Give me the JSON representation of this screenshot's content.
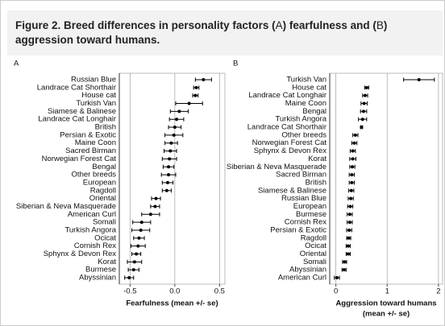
{
  "caption": {
    "label": "Figure 2.",
    "parts": [
      "Breed differences in personality factors (",
      "A",
      ") fearfulness and (",
      "B",
      ") aggression toward humans."
    ]
  },
  "chart_data": [
    {
      "type": "dot",
      "panel": "A",
      "xlabel": [
        "Fearfulness (mean +/- se)"
      ],
      "categories": [
        "Russian Blue",
        "Landrace Cat Shorthair",
        "House cat",
        "Turkish Van",
        "Siamese & Balinese",
        "Landrace Cat Longhair",
        "British",
        "Persian & Exotic",
        "Maine Coon",
        "Sacred Birman",
        "Norwegian Forest Cat",
        "Bengal",
        "Other breeds",
        "European",
        "Ragdoll",
        "Oriental",
        "Siberian & Neva Masquerade",
        "American Curl",
        "Somali",
        "Turkish Angora",
        "Ocicat",
        "Cornish Rex",
        "Sphynx & Devon Rex",
        "Korat",
        "Burmese",
        "Abyssinian"
      ],
      "values": [
        0.32,
        0.24,
        0.23,
        0.16,
        0.05,
        0.02,
        0.0,
        -0.01,
        -0.04,
        -0.05,
        -0.06,
        -0.07,
        -0.07,
        -0.08,
        -0.09,
        -0.21,
        -0.22,
        -0.27,
        -0.37,
        -0.38,
        -0.4,
        -0.41,
        -0.43,
        -0.45,
        -0.46,
        -0.51
      ],
      "errors": [
        0.09,
        0.03,
        0.03,
        0.15,
        0.1,
        0.08,
        0.07,
        0.1,
        0.07,
        0.07,
        0.08,
        0.06,
        0.08,
        0.06,
        0.05,
        0.05,
        0.05,
        0.1,
        0.1,
        0.1,
        0.06,
        0.08,
        0.05,
        0.08,
        0.06,
        0.05
      ],
      "xlim": [
        -0.62,
        0.56
      ],
      "xticks": [
        -0.5,
        {
          "value": 0,
          "label": "0.0"
        },
        0.5
      ],
      "grid": true,
      "color": "#000000"
    },
    {
      "type": "dot",
      "panel": "B",
      "xlabel": [
        "Aggression toward humans",
        "(mean +/- se)"
      ],
      "categories": [
        "Turkish Van",
        "House cat",
        "Landrace Cat Longhair",
        "Maine Coon",
        "Bengal",
        "Turkish Angora",
        "Landrace Cat Shorthair",
        "Other breeds",
        "Norwegian Forest Cat",
        "Sphynx & Devon Rex",
        "Korat",
        "Siberian & Neva Masquerade",
        "Sacred Birman",
        "British",
        "Siamese & Balinese",
        "Russian Blue",
        "European",
        "Burmese",
        "Cornish Rex",
        "Persian & Exotic",
        "Ragdoll",
        "Ocicat",
        "Oriental",
        "Somali",
        "Abyssinian",
        "American Curl"
      ],
      "values": [
        1.62,
        0.6,
        0.57,
        0.55,
        0.54,
        0.52,
        0.5,
        0.38,
        0.36,
        0.33,
        0.33,
        0.32,
        0.31,
        0.31,
        0.3,
        0.29,
        0.28,
        0.27,
        0.27,
        0.26,
        0.25,
        0.24,
        0.24,
        0.17,
        0.16,
        0.02
      ],
      "errors": [
        0.3,
        0.04,
        0.05,
        0.06,
        0.06,
        0.08,
        0.02,
        0.05,
        0.05,
        0.05,
        0.06,
        0.05,
        0.05,
        0.05,
        0.05,
        0.05,
        0.05,
        0.05,
        0.05,
        0.05,
        0.04,
        0.04,
        0.04,
        0.04,
        0.04,
        0.05
      ],
      "xlim": [
        -0.12,
        2.08
      ],
      "xticks": [
        0,
        1,
        2
      ],
      "grid": true,
      "color": "#000000"
    }
  ]
}
